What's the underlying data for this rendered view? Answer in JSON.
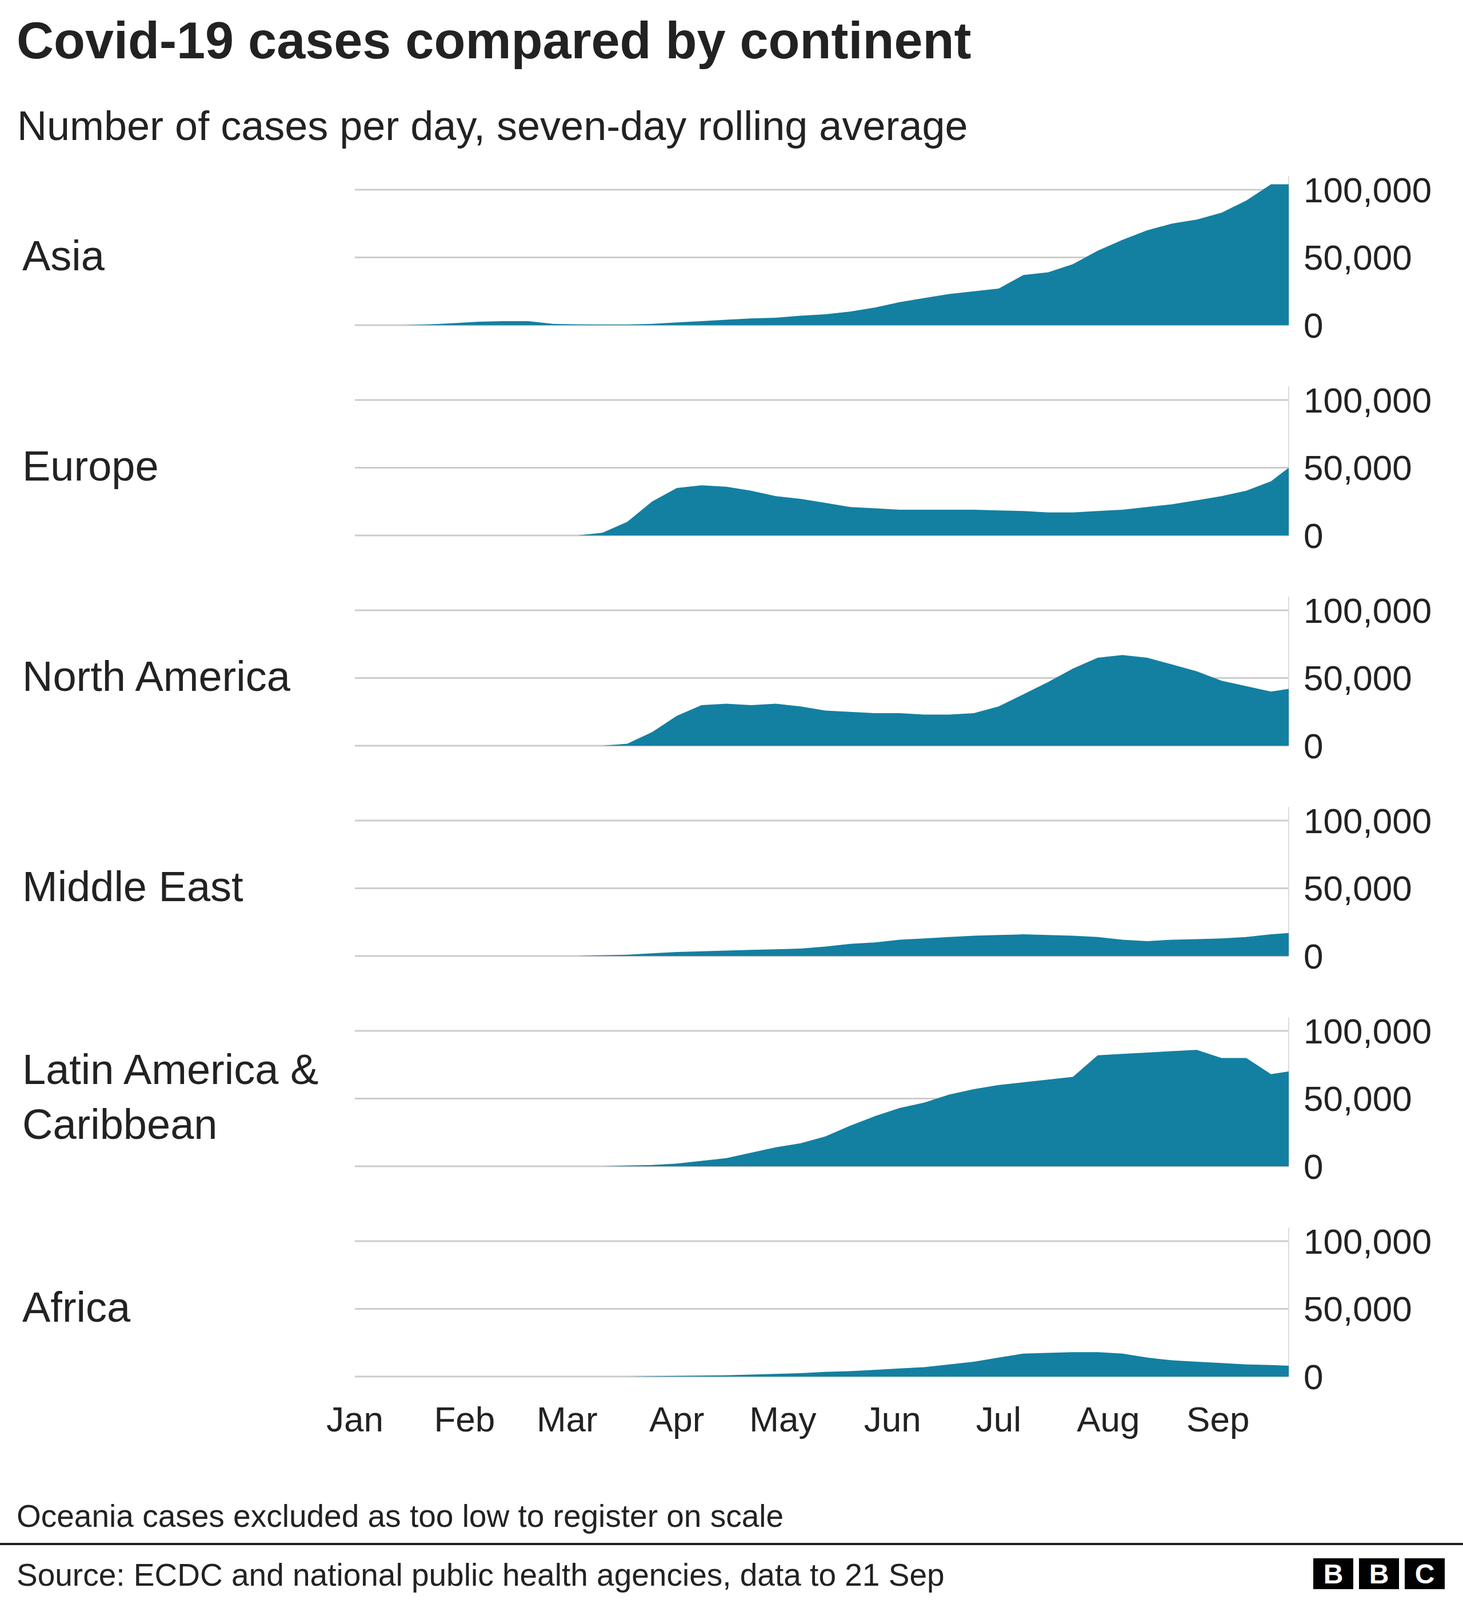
{
  "chart_data": {
    "type": "area",
    "title": "Covid-19 cases compared by continent",
    "subtitle": "Number of cases per day, seven-day rolling average",
    "annotations": [
      "Oceania cases excluded as too low to register on scale",
      "Source: ECDC and national public health agencies, data to 21 Sep"
    ],
    "logo": "BBC",
    "color": "#1380a1",
    "grid": true,
    "x": [
      0,
      7,
      14,
      21,
      28,
      35,
      42,
      49,
      56,
      63,
      70,
      77,
      84,
      91,
      98,
      105,
      112,
      119,
      126,
      133,
      140,
      147,
      154,
      161,
      168,
      175,
      182,
      189,
      196,
      203,
      210,
      217,
      224,
      231,
      238,
      245,
      252,
      259,
      264
    ],
    "xlim": [
      0,
      264
    ],
    "xticks": [
      {
        "value": 0,
        "label": "Jan"
      },
      {
        "value": 31,
        "label": "Feb"
      },
      {
        "value": 60,
        "label": "Mar"
      },
      {
        "value": 91,
        "label": "Apr"
      },
      {
        "value": 121,
        "label": "May"
      },
      {
        "value": 152,
        "label": "Jun"
      },
      {
        "value": 182,
        "label": "Jul"
      },
      {
        "value": 213,
        "label": "Aug"
      },
      {
        "value": 244,
        "label": "Sep"
      }
    ],
    "ylim": [
      0,
      110000
    ],
    "yticks": [
      0,
      {
        "value": 50000,
        "label": "50,000"
      },
      {
        "value": 100000,
        "label": "100,000"
      }
    ],
    "series": [
      {
        "name": "Asia",
        "values": [
          0,
          0,
          0,
          500,
          1500,
          2500,
          3000,
          3000,
          1000,
          500,
          400,
          400,
          1000,
          2000,
          3000,
          4000,
          5000,
          5500,
          7000,
          8000,
          10000,
          13000,
          17000,
          20000,
          23000,
          25000,
          27000,
          37000,
          39000,
          45000,
          55000,
          63000,
          70000,
          75000,
          78000,
          83000,
          92000,
          104000,
          104000
        ]
      },
      {
        "name": "Europe",
        "values": [
          0,
          0,
          0,
          0,
          0,
          0,
          0,
          0,
          0,
          0,
          2000,
          10000,
          25000,
          35000,
          37000,
          36000,
          33000,
          29000,
          27000,
          24000,
          21000,
          20000,
          19000,
          19000,
          19000,
          19000,
          18500,
          18000,
          17000,
          17000,
          18000,
          19000,
          21000,
          23000,
          26000,
          29000,
          33000,
          40000,
          50000
        ]
      },
      {
        "name": "North America",
        "values": [
          0,
          0,
          0,
          0,
          0,
          0,
          0,
          0,
          0,
          0,
          0,
          1500,
          10000,
          22000,
          30000,
          31000,
          30000,
          31000,
          29000,
          26000,
          25000,
          24000,
          24000,
          23000,
          23000,
          24000,
          29000,
          38000,
          47000,
          57000,
          65000,
          67000,
          65000,
          60000,
          55000,
          48000,
          44000,
          40000,
          42000
        ]
      },
      {
        "name": "Middle East",
        "values": [
          0,
          0,
          0,
          0,
          0,
          0,
          0,
          0,
          0,
          0,
          500,
          1000,
          2000,
          3000,
          3500,
          4000,
          4500,
          5000,
          5500,
          7000,
          9000,
          10000,
          12000,
          13000,
          14000,
          15000,
          15500,
          16000,
          15500,
          15000,
          14000,
          12000,
          11000,
          12000,
          12500,
          13000,
          14000,
          16000,
          17000
        ]
      },
      {
        "name": "Latin America & Caribbean",
        "values": [
          0,
          0,
          0,
          0,
          0,
          0,
          0,
          0,
          0,
          0,
          0,
          500,
          1000,
          2000,
          4000,
          6000,
          10000,
          14000,
          17000,
          22000,
          30000,
          37000,
          43000,
          47000,
          53000,
          57000,
          60000,
          62000,
          64000,
          66000,
          82000,
          83000,
          84000,
          85000,
          86000,
          80000,
          80000,
          68000,
          70000
        ]
      },
      {
        "name": "Africa",
        "values": [
          0,
          0,
          0,
          0,
          0,
          0,
          0,
          0,
          0,
          0,
          0,
          0,
          300,
          500,
          700,
          1000,
          1500,
          2000,
          2500,
          3500,
          4000,
          5000,
          6000,
          7000,
          9000,
          11000,
          14000,
          17000,
          17500,
          18000,
          18000,
          17000,
          14000,
          12000,
          11000,
          10000,
          9000,
          8500,
          8000
        ]
      }
    ]
  }
}
